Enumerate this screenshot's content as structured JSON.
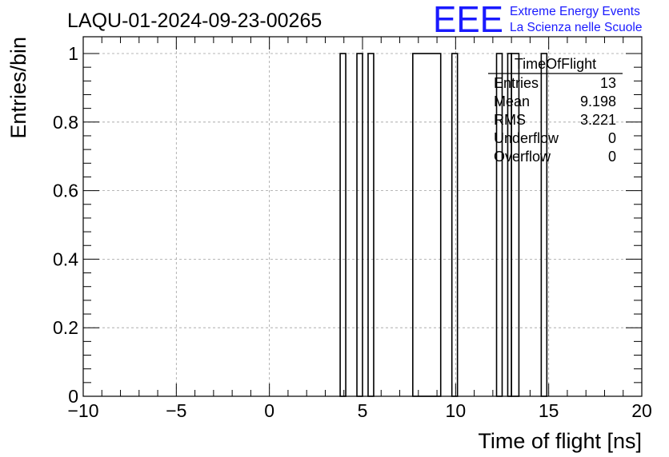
{
  "chart_data": {
    "type": "bar",
    "title": "LAQU-01-2024-09-23-00265",
    "xlabel": "Time of flight [ns]",
    "ylabel": "Entries/bin",
    "xlim": [
      -10,
      20
    ],
    "ylim": [
      0,
      1.05
    ],
    "grid": true,
    "x_ticks": [
      "−10",
      "−5",
      "0",
      "5",
      "10",
      "15",
      "20"
    ],
    "y_ticks": [
      "0",
      "0.2",
      "0.4",
      "0.6",
      "0.8",
      "1"
    ],
    "bins": [
      {
        "x0": 3.8,
        "x1": 4.1,
        "value": 1
      },
      {
        "x0": 4.7,
        "x1": 5.0,
        "value": 1
      },
      {
        "x0": 5.3,
        "x1": 5.6,
        "value": 1
      },
      {
        "x0": 7.7,
        "x1": 9.2,
        "value": 1
      },
      {
        "x0": 9.8,
        "x1": 10.1,
        "value": 1
      },
      {
        "x0": 12.2,
        "x1": 12.5,
        "value": 1
      },
      {
        "x0": 12.8,
        "x1": 13.0,
        "value": 1
      },
      {
        "x0": 13.0,
        "x1": 13.4,
        "value": 1
      },
      {
        "x0": 14.6,
        "x1": 14.9,
        "value": 1
      }
    ],
    "stats": {
      "name": "TimeOfFlight",
      "rows": [
        {
          "label": "Entries",
          "value": "13"
        },
        {
          "label": "Mean",
          "value": "9.198"
        },
        {
          "label": "RMS",
          "value": "3.221"
        },
        {
          "label": "Underflow",
          "value": "0"
        },
        {
          "label": "Overflow",
          "value": "0"
        }
      ]
    }
  },
  "logo": {
    "mark": "EEE",
    "line1": "Extreme Energy Events",
    "line2": "La Scienza nelle Scuole",
    "color": "#1a1aff"
  }
}
